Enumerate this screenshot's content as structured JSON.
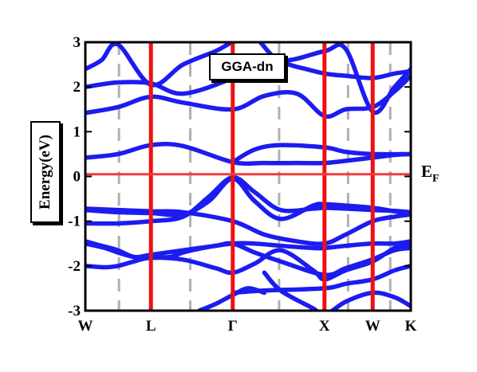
{
  "chart_data": {
    "type": "line",
    "title": "",
    "xlabel": "",
    "ylabel": "Energy(eV)",
    "ylim": [
      -3,
      3
    ],
    "yticks": [
      "3",
      "2",
      "1",
      "0",
      "-1",
      "-2",
      "-3"
    ],
    "ytick_values": [
      3,
      2,
      1,
      0,
      -1,
      -2,
      -3
    ],
    "high_symmetry_points": [
      {
        "label": "W",
        "k": 0.0
      },
      {
        "label": "L",
        "k": 0.2015
      },
      {
        "label": "Γ",
        "k": 0.4529
      },
      {
        "label": "X",
        "k": 0.7348
      },
      {
        "label": "W",
        "k": 0.8829
      },
      {
        "label": "K",
        "k": 1.0
      }
    ],
    "high_symmetry_colored": [
      "L",
      "Γ",
      "X",
      "W"
    ],
    "dashed_k": [
      0.1033,
      0.3224,
      0.5954,
      0.8073,
      0.9369
    ],
    "fermi_level": 0.05,
    "fermi_label": "E",
    "fermi_sub": "F",
    "legend": "GGA-dn",
    "colors": {
      "bands": "#1c1cf0",
      "symmetry_lines": "#ee1111",
      "fermi_line": "#f03c3c",
      "dashed": "#b0b0b0"
    },
    "series": [
      {
        "x": [
          0.0,
          0.06,
          0.1,
          0.15,
          0.2,
          0.3,
          0.4,
          0.4529,
          0.52,
          0.6,
          0.7,
          0.7348,
          0.8,
          0.8829,
          0.95,
          1.0
        ],
        "y": [
          -2.0,
          -2.03,
          -2.0,
          -1.9,
          -1.82,
          -1.86,
          -2.05,
          -2.15,
          -1.95,
          -1.65,
          -2.1,
          -2.3,
          -2.1,
          -1.9,
          -1.6,
          -1.5
        ]
      },
      {
        "x": [
          0.0,
          0.06,
          0.1,
          0.15,
          0.2,
          0.26,
          0.3,
          0.36,
          0.4529,
          0.52,
          0.6,
          0.7,
          0.7348,
          0.8,
          0.8829,
          0.95,
          1.0
        ],
        "y": [
          -1.5,
          -1.6,
          -1.7,
          -1.8,
          -1.8,
          -1.8,
          -1.7,
          -1.6,
          -1.5,
          -1.5,
          -1.55,
          -1.6,
          -1.6,
          -1.55,
          -1.5,
          -1.5,
          -1.45
        ]
      },
      {
        "x": [
          0.0,
          0.05,
          0.1,
          0.15,
          0.2015,
          0.3,
          0.4,
          0.4529,
          0.52,
          0.6,
          0.7348,
          0.8,
          0.8829,
          0.95,
          1.0
        ],
        "y": [
          -1.45,
          -1.55,
          -1.65,
          -1.8,
          -1.75,
          -1.65,
          -1.55,
          -1.5,
          -1.7,
          -1.9,
          -2.2,
          -2.05,
          -1.85,
          -1.65,
          -1.6
        ]
      },
      {
        "x": [
          0.0,
          0.1,
          0.2015,
          0.3,
          0.38,
          0.4529,
          0.52,
          0.6,
          0.7,
          0.7348,
          0.8,
          0.8829,
          0.95,
          1.0
        ],
        "y": [
          -1.05,
          -1.05,
          -1.0,
          -0.9,
          -0.45,
          -0.02,
          -0.35,
          -0.75,
          -0.72,
          -0.7,
          -0.72,
          -0.75,
          -0.77,
          -0.8
        ]
      },
      {
        "x": [
          0.0,
          0.1,
          0.2015,
          0.3,
          0.38,
          0.4529,
          0.52,
          0.6,
          0.7,
          0.7348,
          0.8,
          0.8829,
          0.95,
          1.0
        ],
        "y": [
          -0.75,
          -0.8,
          -0.82,
          -0.85,
          -0.55,
          -0.05,
          -0.55,
          -0.95,
          -0.65,
          -0.62,
          -0.65,
          -0.7,
          -0.78,
          -0.82
        ]
      },
      {
        "x": [
          0.0,
          0.1,
          0.2015,
          0.3,
          0.4529,
          0.55,
          0.65,
          0.7348,
          0.8,
          0.8829,
          0.95,
          1.0
        ],
        "y": [
          -0.72,
          -0.75,
          -0.78,
          -0.8,
          -1.0,
          -1.3,
          -1.45,
          -1.5,
          -1.3,
          -1.0,
          -0.9,
          -0.85
        ]
      },
      {
        "x": [
          0.0,
          0.1,
          0.2015,
          0.3,
          0.4529,
          0.55,
          0.65,
          0.7348,
          0.8,
          0.8829,
          0.95,
          1.0
        ],
        "y": [
          0.42,
          0.5,
          0.7,
          0.68,
          0.32,
          0.3,
          0.3,
          0.3,
          0.35,
          0.42,
          0.48,
          0.5
        ]
      },
      {
        "x": [
          0.4529,
          0.52,
          0.6,
          0.7348,
          0.8,
          0.8829,
          1.0
        ],
        "y": [
          0.32,
          0.6,
          0.7,
          0.65,
          0.55,
          0.5,
          0.5
        ]
      },
      {
        "x": [
          0.0,
          0.1,
          0.2015,
          0.3,
          0.4529,
          0.55,
          0.65,
          0.7348,
          0.8,
          0.8829,
          0.95,
          1.0
        ],
        "y": [
          1.42,
          1.55,
          1.78,
          1.65,
          1.5,
          1.8,
          1.85,
          1.35,
          1.5,
          1.55,
          1.9,
          2.25
        ]
      },
      {
        "x": [
          0.0,
          0.1,
          0.2015,
          0.3,
          0.4529,
          0.55,
          0.65,
          0.7348,
          0.8,
          0.8829,
          0.95,
          1.0
        ],
        "y": [
          2.0,
          2.1,
          2.08,
          1.85,
          2.2,
          2.6,
          2.45,
          2.3,
          2.25,
          2.2,
          2.3,
          2.35
        ]
      },
      {
        "x": [
          0.0,
          0.05,
          0.1,
          0.2015,
          0.3,
          0.4,
          0.4529,
          0.52,
          0.6,
          0.7348,
          0.8,
          0.8829,
          0.95,
          1.0
        ],
        "y": [
          2.4,
          2.6,
          2.95,
          2.05,
          2.5,
          2.8,
          3.0,
          3.1,
          2.6,
          2.8,
          2.85,
          1.45,
          2.0,
          2.4
        ]
      },
      {
        "x": [
          0.4529,
          0.55,
          0.7348,
          0.8,
          0.8829,
          0.95,
          1.0
        ],
        "y": [
          -2.6,
          -2.55,
          -2.5,
          -2.4,
          -2.3,
          -2.1,
          -2.0
        ]
      },
      {
        "x": [
          0.55,
          0.6,
          0.7,
          0.7348,
          0.8,
          0.8829,
          0.95,
          1.0
        ],
        "y": [
          -2.15,
          -2.55,
          -2.95,
          -3.1,
          -2.8,
          -2.6,
          -2.7,
          -2.9
        ]
      },
      {
        "x": [
          0.35,
          0.4,
          0.4529,
          0.5,
          0.55
        ],
        "y": [
          -3.0,
          -2.85,
          -2.65,
          -2.5,
          -2.6
        ]
      }
    ]
  }
}
